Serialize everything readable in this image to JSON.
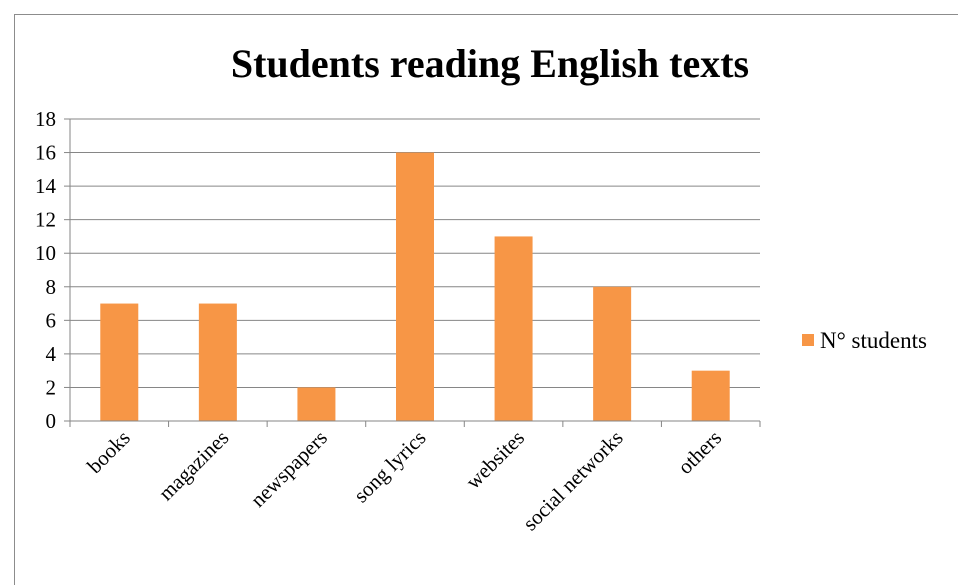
{
  "chart_data": {
    "type": "bar",
    "title": "Students reading English texts",
    "categories": [
      "books",
      "magazines",
      "newspapers",
      "song lyrics",
      "websites",
      "social networks",
      "others"
    ],
    "series": [
      {
        "name": "N° students",
        "values": [
          7,
          7,
          2,
          16,
          11,
          8,
          3
        ],
        "color": "#f79646"
      }
    ],
    "ylim": [
      0,
      18
    ],
    "yticks": [
      0,
      2,
      4,
      6,
      8,
      10,
      12,
      14,
      16,
      18
    ],
    "grid": true,
    "legend": "right"
  }
}
